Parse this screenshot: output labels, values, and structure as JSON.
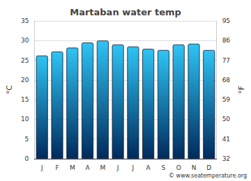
{
  "chart_data": {
    "type": "bar",
    "title": "Martaban water temp",
    "categories": [
      "J",
      "F",
      "M",
      "A",
      "M",
      "J",
      "J",
      "A",
      "S",
      "O",
      "N",
      "D"
    ],
    "values": [
      26.2,
      27.2,
      28.2,
      29.5,
      30.0,
      29.0,
      28.5,
      27.9,
      27.6,
      29.0,
      29.2,
      27.6
    ],
    "color": "#2ec4f4",
    "y_label": "°C",
    "y2_label": "°F",
    "ylim": [
      0,
      35
    ],
    "yticks": [
      0,
      5,
      10,
      15,
      20,
      25,
      30,
      35
    ],
    "y2lim": [
      32,
      95
    ],
    "y2ticks": [
      32,
      41,
      50,
      59,
      68,
      77,
      86,
      95
    ],
    "grid": true,
    "caption": "© www.seatemperature.org"
  }
}
